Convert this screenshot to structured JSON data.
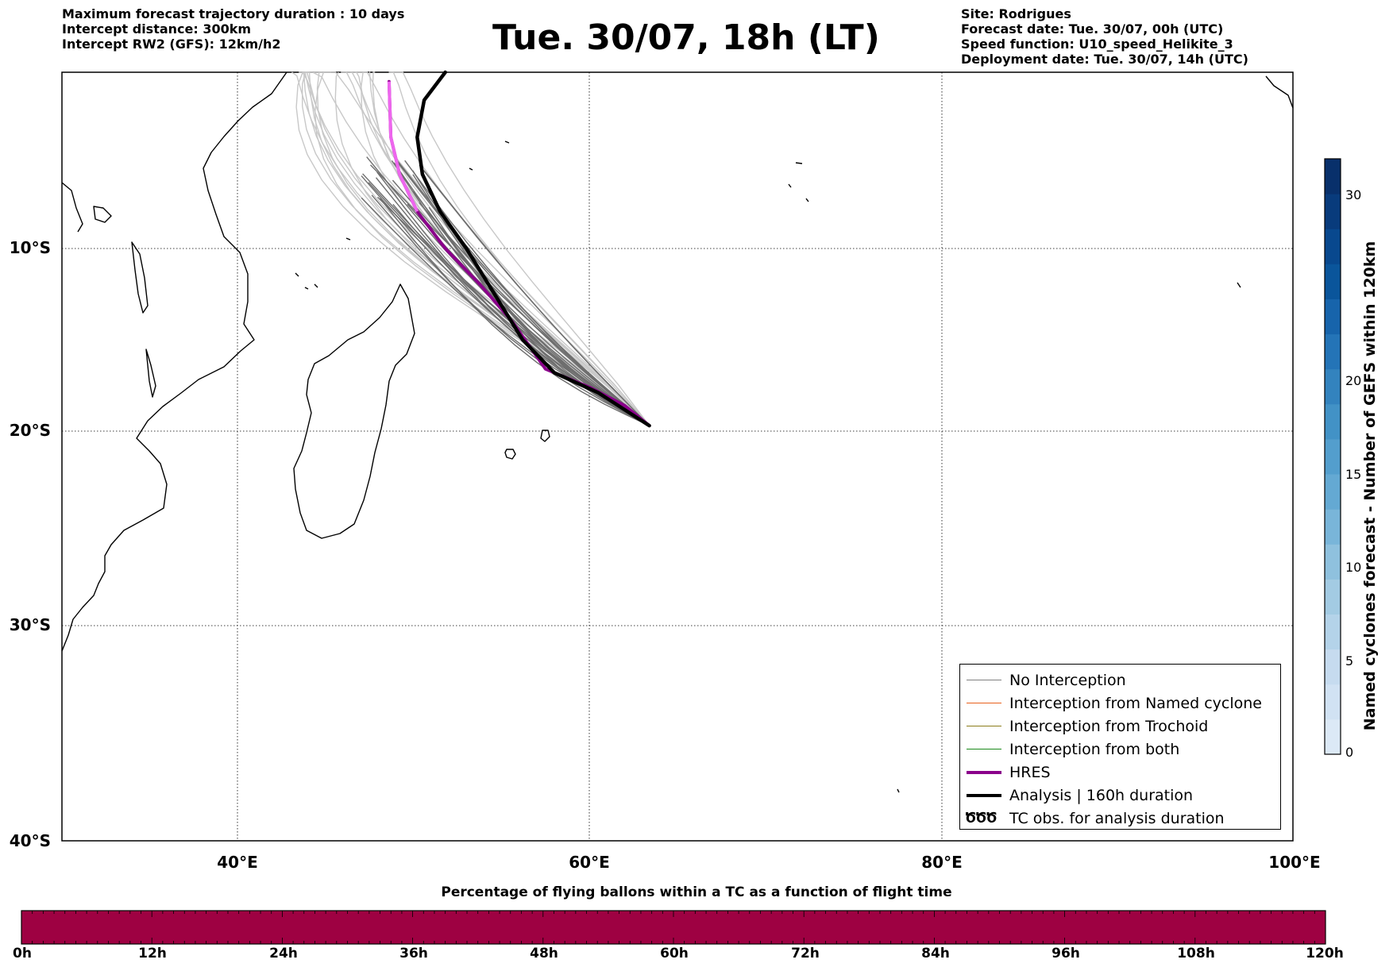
{
  "header": {
    "left": [
      "Maximum forecast trajectory duration : 10 days",
      "Intercept distance: 300km",
      "Intercept RW2 (GFS):  12km/h2"
    ],
    "title": "Tue. 30/07, 18h (LT)",
    "right": [
      "Site: Rodrigues",
      "Forecast date: Tue. 30/07, 00h (UTC)",
      "Speed function: U10_speed_Helikite_3",
      "Deployment date: Tue. 30/07, 14h (UTC)"
    ]
  },
  "map": {
    "lat_labels": [
      "10°S",
      "20°S",
      "30°S",
      "40°S"
    ],
    "lon_labels": [
      "40°E",
      "60°E",
      "80°E",
      "100°E"
    ],
    "extent": {
      "lon_min": 30,
      "lon_max": 100,
      "lat_top": -0.5,
      "lat_bottom": -40
    },
    "site": {
      "name": "Rodrigues",
      "lon": 63.4,
      "lat": -19.7
    }
  },
  "legend": {
    "items": [
      {
        "label": "No Interception",
        "color": "#808080",
        "kind": "thin"
      },
      {
        "label": "Interception from Named cyclone",
        "color": "#e8601c",
        "kind": "thin"
      },
      {
        "label": "Interception from Trochoid",
        "color": "#8b7d1a",
        "kind": "thin"
      },
      {
        "label": "Interception from both",
        "color": "#1a8a1a",
        "kind": "thin"
      },
      {
        "label": "HRES",
        "color": "#8b008b",
        "kind": "thick"
      },
      {
        "label": "Analysis | 160h duration",
        "color": "#000000",
        "kind": "thick"
      },
      {
        "label": "TC obs. for analysis duration",
        "color": "#000000",
        "kind": "symbol",
        "symbol": "ԾԾԾ"
      }
    ]
  },
  "colorbar": {
    "label": "Named cyclones forecast - Number of GEFS within 120km",
    "ticks": [
      "0",
      "5",
      "10",
      "15",
      "20",
      "30"
    ],
    "colors_bottom_to_top": [
      "#dce9f6",
      "#d1e2f3",
      "#c6dbef",
      "#b4d3e9",
      "#a3cbe3",
      "#8fc1de",
      "#79b5d9",
      "#64a9d3",
      "#539ecd",
      "#4292c6",
      "#3383be",
      "#2474b7",
      "#1764ab",
      "#0a559b",
      "#08488e",
      "#083b7c",
      "#08306b"
    ]
  },
  "percentage_bar": {
    "title": "Percentage of flying ballons within a TC as a function of flight time",
    "ticks": [
      "0h",
      "12h",
      "24h",
      "36h",
      "48h",
      "60h",
      "72h",
      "84h",
      "96h",
      "108h",
      "120h"
    ],
    "fill_color": "#9e0142",
    "percentage": 0
  },
  "chart_data": {
    "type": "line",
    "title": "Tue. 30/07, 18h (LT)",
    "series": [
      {
        "name": "HRES",
        "points": [
          [
            48.6,
            -1
          ],
          [
            48.7,
            -4
          ],
          [
            49.2,
            -6
          ],
          [
            50.2,
            -8
          ],
          [
            51.8,
            -10
          ],
          [
            53.8,
            -12
          ],
          [
            55.6,
            -14
          ],
          [
            57.5,
            -16.6
          ],
          [
            60,
            -17.6
          ],
          [
            62,
            -18.6
          ],
          [
            63.4,
            -19.7
          ]
        ]
      },
      {
        "name": "Analysis | 160h duration",
        "points": [
          [
            51.8,
            -0.5
          ],
          [
            50.6,
            -2
          ],
          [
            50.2,
            -4
          ],
          [
            50.5,
            -6
          ],
          [
            51.5,
            -8
          ],
          [
            53,
            -10
          ],
          [
            54.6,
            -12.5
          ],
          [
            56.2,
            -15
          ],
          [
            58,
            -16.8
          ],
          [
            60.5,
            -17.9
          ],
          [
            63.4,
            -19.7
          ]
        ]
      }
    ]
  }
}
